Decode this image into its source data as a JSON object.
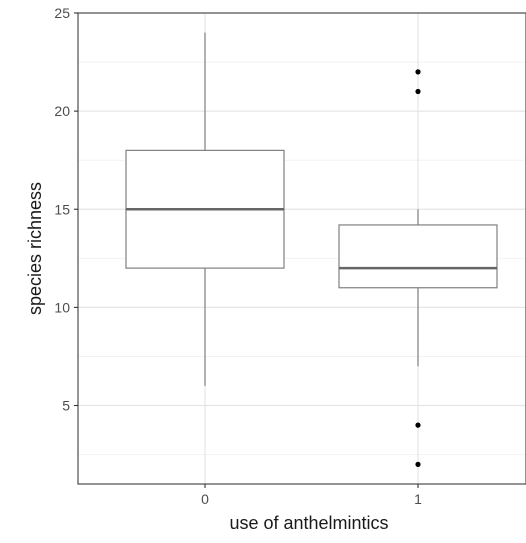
{
  "chart_data": {
    "type": "box",
    "xlabel": "use of anthelmintics",
    "ylabel": "species richness",
    "ylim": [
      1,
      25
    ],
    "y_ticks": [
      5,
      10,
      15,
      20,
      25
    ],
    "grid": true,
    "categories": [
      "0",
      "1"
    ],
    "boxes": [
      {
        "category": "0",
        "whisker_low": 6,
        "q1": 12,
        "median": 15,
        "q3": 18,
        "whisker_high": 24,
        "outliers": []
      },
      {
        "category": "1",
        "whisker_low": 7,
        "q1": 11,
        "median": 12,
        "q3": 14.2,
        "whisker_high": 15,
        "outliers": [
          22,
          21,
          4,
          2
        ]
      }
    ],
    "colors": {
      "box_stroke": "#808080",
      "median": "#666666",
      "outlier": "#000000",
      "grid_major": "#e5e5e5",
      "grid_minor": "#f2f2f2",
      "panel_border": "#4d4d4d"
    }
  }
}
